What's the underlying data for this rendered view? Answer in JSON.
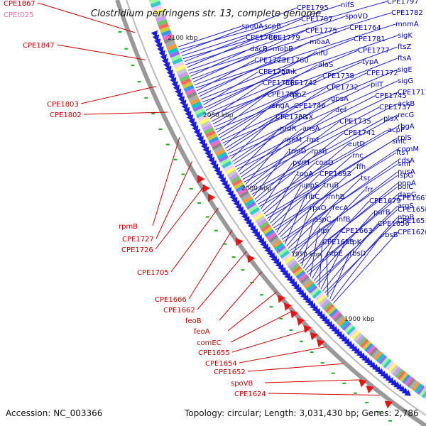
{
  "title": "Clostridium perfringens str. 13, complete genome",
  "accession": "Accession: NC_003366",
  "topology": "Topology: circular; Length: 3,031,430 bp; Genes: 2,786",
  "colors": {
    "plus": "#0000bb",
    "minus": "#cc0000",
    "trna": "#e070b0",
    "arc": "#888888",
    "arrow": "#1a1aee",
    "arrow_red": "#ee1111",
    "marker": "#22aa22"
  },
  "tick_labels": [
    "2100 kbp",
    "2050 kbp",
    "2000 kbp",
    "1950 kbp",
    "1900 kbp"
  ],
  "blue_labels": [
    "spo0A",
    "scpB",
    "CPE1795",
    "nifS",
    "CPE1797",
    "CPE1786",
    "CPE1779",
    "CPE1787",
    "spoVD",
    "CPE1782",
    "dacB",
    "mobB",
    "CPE1775",
    "CPE1764",
    "mnmA",
    "CPE1773",
    "CPE1760",
    "moaA",
    "CPE1781",
    "sigK",
    "CPE1757",
    "gmk",
    "nifU",
    "CPE1777",
    "ftsZ",
    "CPE1756",
    "CPE1742",
    "alaS",
    "typA",
    "ftsA",
    "CPE1758",
    "rpoZ",
    "CPE1738",
    "CPE1772",
    "sigE",
    "engA",
    "CPE1746",
    "CPE1732",
    "pilT",
    "sigG",
    "CPE1733",
    "plsX",
    "gpsA",
    "CPE1745",
    "CPE1717",
    "nrdR",
    "ansA",
    "def",
    "CPE1737",
    "ackB",
    "rimM",
    "fmt",
    "CPE1735",
    "plsX",
    "recG",
    "trmD",
    "rpsB",
    "CPE1741",
    "acpP",
    "rbgA",
    "pyrH",
    "coaD",
    "eutD",
    "smc",
    "rplS",
    "topA",
    "CPE1693",
    "rnc",
    "ftsY",
    "comM",
    "uppS",
    "truB",
    "ffh",
    "smf",
    "cdsA",
    "ribC",
    "rnhB",
    "tsr",
    "ispG",
    "nusA",
    "rpsO",
    "recA",
    "frr",
    "polC",
    "pnpA",
    "aspC",
    "infB",
    "CPE1679",
    "CPE1667",
    "dapG",
    "hpr",
    "CPE1663",
    "purB",
    "CPE1658",
    "argS",
    "CPE1653",
    "ntpK",
    "CPE1656",
    "CPE1651",
    "ntpB",
    "ntpE",
    "rbsD",
    "rbsB",
    "CPE1626"
  ],
  "red_labels": [
    "CPE1867",
    "CPE1847",
    "CPE1803",
    "CPE1802",
    "rpmB",
    "CPE1727",
    "CPE1726",
    "CPE1705",
    "CPE1666",
    "CPE1662",
    "feoB",
    "feoA",
    "comEC",
    "CPE1655",
    "CPE1654",
    "CPE1652",
    "spoVB",
    "CPE1624"
  ],
  "pink_labels": [
    "CPEt025"
  ]
}
